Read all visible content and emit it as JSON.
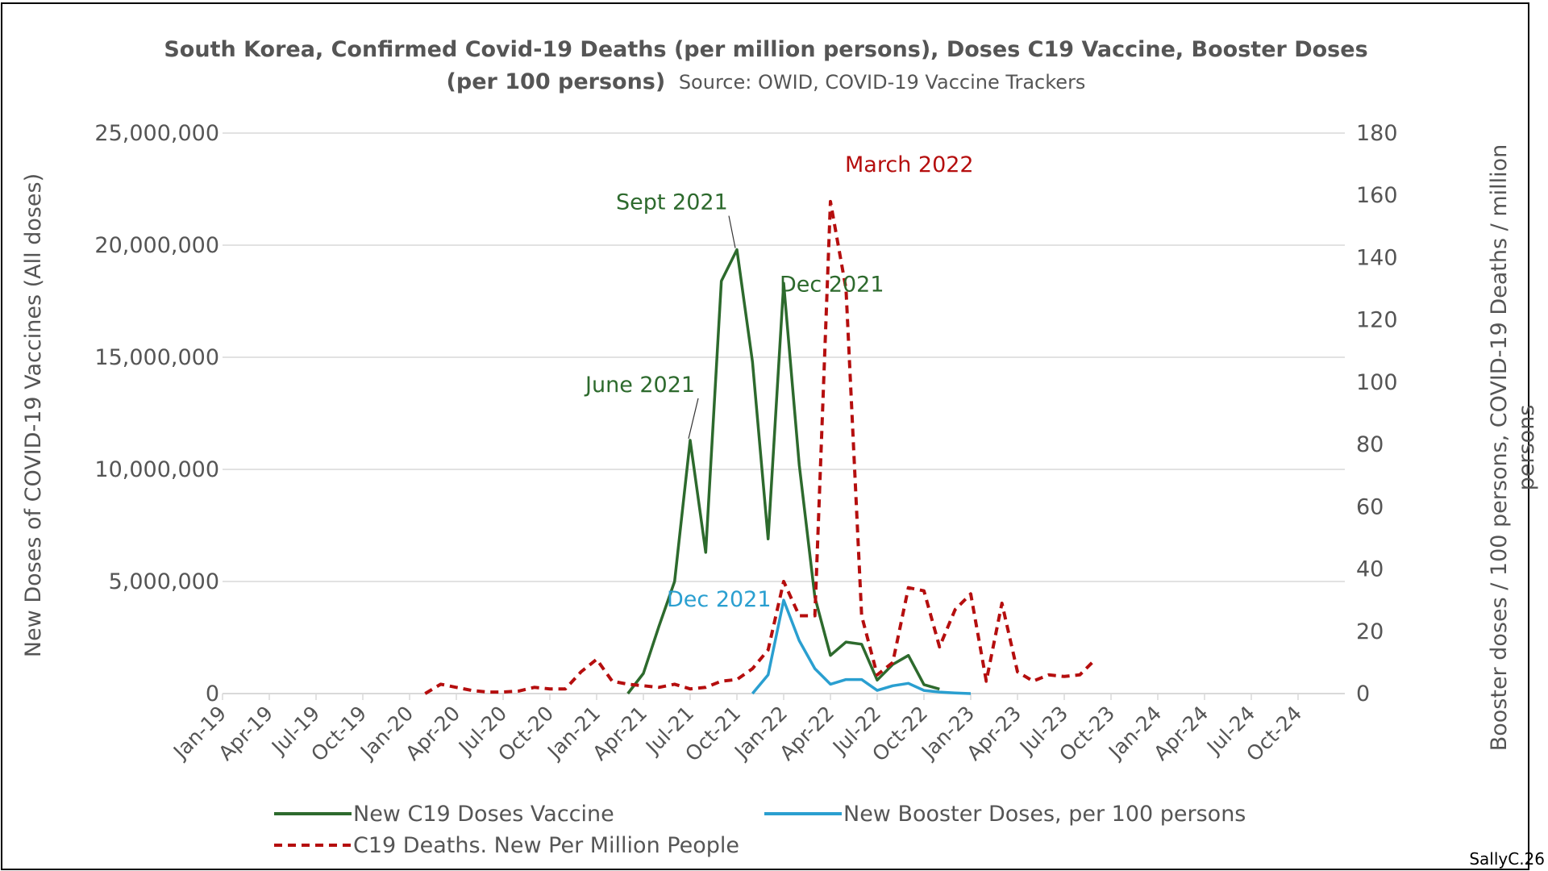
{
  "chart_data": {
    "type": "line",
    "title_bold": "South Korea, Confirmed Covid-19 Deaths (per million persons), Doses C19 Vaccine, Booster Doses",
    "title_bold_line2": "(per 100 persons)",
    "title_source": "Source: OWID, COVID-19 Vaccine Trackers",
    "ylabel_left": "New  Doses of COVID-19 Vaccines (All doses)",
    "ylabel_right_line1": "Booster doses / 100 persons, COVID-19 Deaths / million",
    "ylabel_right_line2": "persons",
    "ylim_left": [
      0,
      25000000
    ],
    "ylim_right": [
      0,
      180
    ],
    "yticks_left": [
      "0",
      "5,000,000",
      "10,000,000",
      "15,000,000",
      "20,000,000",
      "25,000,000"
    ],
    "yticks_right": [
      "0",
      "20",
      "40",
      "60",
      "80",
      "100",
      "120",
      "140",
      "160",
      "180"
    ],
    "xticks": [
      "Jan-19",
      "Apr-19",
      "Jul-19",
      "Oct-19",
      "Jan-20",
      "Apr-20",
      "Jul-20",
      "Oct-20",
      "Jan-21",
      "Apr-21",
      "Jul-21",
      "Oct-21",
      "Jan-22",
      "Apr-22",
      "Jul-22",
      "Oct-22",
      "Jan-23",
      "Apr-23",
      "Jul-23",
      "Oct-23",
      "Jan-24",
      "Apr-24",
      "Jul-24",
      "Oct-24"
    ],
    "x_unit": "months since Jan 2019",
    "x_range": [
      0,
      72
    ],
    "series": [
      {
        "name": "New C19 Doses Vaccine",
        "axis": "left",
        "color": "#2d6a2d",
        "style": "solid",
        "x": [
          26,
          27,
          28,
          29,
          30,
          31,
          32,
          33,
          34,
          35,
          36,
          37,
          38,
          39,
          40,
          41,
          42,
          43,
          44,
          45,
          46
        ],
        "y": [
          0,
          900000,
          3000000,
          5000000,
          11300000,
          6300000,
          18400000,
          19800000,
          14800000,
          6900000,
          18300000,
          10200000,
          4300000,
          1700000,
          2300000,
          2200000,
          600000,
          1300000,
          1700000,
          400000,
          200000
        ]
      },
      {
        "name": "New Booster Doses, per 100 persons",
        "axis": "right",
        "color": "#2a9fd0",
        "style": "solid",
        "x": [
          34,
          35,
          36,
          37,
          38,
          39,
          40,
          41,
          42,
          43,
          44,
          45,
          46,
          47,
          48
        ],
        "y": [
          0,
          6,
          30,
          17,
          8,
          3,
          4.5,
          4.5,
          1,
          2.5,
          3.3,
          1,
          0.5,
          0.2,
          0
        ]
      },
      {
        "name": "C19 Deaths. New Per Million People",
        "axis": "right",
        "color": "#b50e0e",
        "style": "dashed",
        "x": [
          13,
          14,
          15,
          16,
          17,
          18,
          19,
          20,
          21,
          22,
          23,
          24,
          25,
          26,
          27,
          28,
          29,
          30,
          31,
          32,
          33,
          34,
          35,
          36,
          37,
          38,
          39,
          40,
          41,
          42,
          43,
          44,
          45,
          46,
          47,
          48,
          49,
          50,
          51,
          52,
          53,
          54,
          55,
          56
        ],
        "y": [
          0,
          3,
          2,
          1,
          0.5,
          0.5,
          0.8,
          2,
          1.5,
          1.5,
          7,
          11,
          4,
          3,
          2.5,
          2,
          3,
          1.5,
          2,
          4,
          4.5,
          8,
          14,
          36,
          25,
          25,
          158,
          130,
          25,
          6,
          10,
          34,
          33,
          15,
          27,
          32,
          4,
          29,
          7,
          4,
          6,
          5.5,
          6,
          11
        ]
      }
    ],
    "annotations": [
      {
        "text": "June 2021",
        "series": 0,
        "x": 30,
        "color": "#2d6a2d"
      },
      {
        "text": "Sept 2021",
        "series": 0,
        "x": 33,
        "color": "#2d6a2d"
      },
      {
        "text": "Dec 2021",
        "series": 0,
        "x": 36,
        "color": "#2d6a2d"
      },
      {
        "text": "Dec 2021",
        "series": 1,
        "x": 36,
        "color": "#2a9fd0"
      },
      {
        "text": "March 2022",
        "series": 2,
        "x": 39,
        "color": "#b50e0e"
      }
    ],
    "credit": "SallyC.26",
    "legend_position": "bottom",
    "grid": true
  }
}
